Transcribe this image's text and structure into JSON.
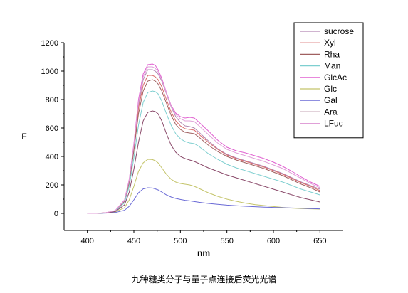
{
  "caption": "九种糖类分子与量子点连接后荧光光谱",
  "chart_data": {
    "type": "line",
    "xlabel": "nm",
    "ylabel": "F",
    "xlim": [
      375,
      675
    ],
    "ylim": [
      -120,
      1200
    ],
    "x_ticks": [
      400,
      450,
      500,
      550,
      600,
      650
    ],
    "y_ticks": [
      0,
      200,
      400,
      600,
      800,
      1000,
      1200
    ],
    "grid": false,
    "legend_position": "top-right",
    "x": [
      400,
      410,
      420,
      430,
      440,
      445,
      450,
      455,
      460,
      465,
      470,
      473,
      476,
      480,
      485,
      490,
      495,
      500,
      505,
      510,
      515,
      520,
      530,
      540,
      550,
      560,
      570,
      580,
      590,
      600,
      610,
      620,
      630,
      640,
      650
    ],
    "series": [
      {
        "name": "sucrose",
        "color": "#b388b3",
        "values": [
          0,
          0,
          5,
          18,
          90,
          230,
          470,
          760,
          940,
          1010,
          1010,
          1000,
          980,
          930,
          840,
          750,
          680,
          640,
          615,
          610,
          600,
          570,
          510,
          455,
          415,
          390,
          370,
          350,
          330,
          305,
          280,
          250,
          220,
          195,
          170
        ]
      },
      {
        "name": "Xyl",
        "color": "#d96a6a",
        "values": [
          0,
          0,
          5,
          18,
          88,
          225,
          460,
          740,
          900,
          970,
          970,
          960,
          940,
          890,
          800,
          715,
          650,
          615,
          595,
          590,
          585,
          555,
          500,
          450,
          410,
          385,
          365,
          345,
          325,
          300,
          275,
          245,
          215,
          190,
          160
        ]
      },
      {
        "name": "Rha",
        "color": "#a06060",
        "values": [
          0,
          0,
          5,
          16,
          85,
          215,
          440,
          700,
          860,
          930,
          940,
          930,
          910,
          860,
          775,
          690,
          625,
          590,
          570,
          565,
          560,
          535,
          480,
          435,
          400,
          375,
          355,
          335,
          315,
          290,
          265,
          235,
          205,
          180,
          150
        ]
      },
      {
        "name": "Man",
        "color": "#7ecfd0",
        "values": [
          0,
          0,
          4,
          15,
          75,
          190,
          390,
          620,
          780,
          850,
          860,
          855,
          840,
          790,
          700,
          620,
          560,
          525,
          505,
          495,
          490,
          470,
          420,
          380,
          345,
          320,
          300,
          280,
          260,
          240,
          220,
          195,
          170,
          150,
          130
        ]
      },
      {
        "name": "GlcAc",
        "color": "#e060d0",
        "values": [
          0,
          0,
          5,
          20,
          95,
          240,
          490,
          800,
          980,
          1045,
          1050,
          1040,
          1010,
          950,
          850,
          760,
          705,
          680,
          670,
          675,
          670,
          640,
          580,
          515,
          465,
          440,
          425,
          405,
          385,
          360,
          330,
          295,
          255,
          220,
          190
        ]
      },
      {
        "name": "Glc",
        "color": "#c4c46a",
        "values": [
          0,
          0,
          3,
          10,
          40,
          95,
          190,
          295,
          355,
          380,
          378,
          370,
          355,
          320,
          275,
          240,
          220,
          210,
          205,
          200,
          190,
          175,
          145,
          120,
          100,
          85,
          72,
          62,
          55,
          48,
          42,
          37,
          34,
          32,
          30
        ]
      },
      {
        "name": "Gal",
        "color": "#6a6ad6",
        "values": [
          0,
          0,
          2,
          6,
          22,
          50,
          95,
          145,
          172,
          180,
          178,
          172,
          165,
          150,
          130,
          115,
          105,
          98,
          92,
          88,
          83,
          78,
          70,
          64,
          58,
          54,
          50,
          47,
          44,
          42,
          40,
          38,
          36,
          34,
          32
        ]
      },
      {
        "name": "Ara",
        "color": "#8a4a6a",
        "values": [
          0,
          0,
          4,
          13,
          60,
          150,
          310,
          500,
          650,
          710,
          720,
          715,
          700,
          650,
          560,
          480,
          430,
          400,
          385,
          375,
          365,
          350,
          320,
          295,
          270,
          250,
          230,
          210,
          190,
          170,
          150,
          130,
          110,
          95,
          80
        ]
      },
      {
        "name": "LFuc",
        "color": "#e0a0d8",
        "values": [
          0,
          0,
          5,
          19,
          92,
          235,
          480,
          780,
          960,
          1030,
          1030,
          1020,
          995,
          940,
          845,
          755,
          695,
          665,
          650,
          650,
          645,
          615,
          555,
          495,
          450,
          425,
          405,
          385,
          365,
          340,
          315,
          280,
          245,
          210,
          180
        ]
      }
    ]
  }
}
